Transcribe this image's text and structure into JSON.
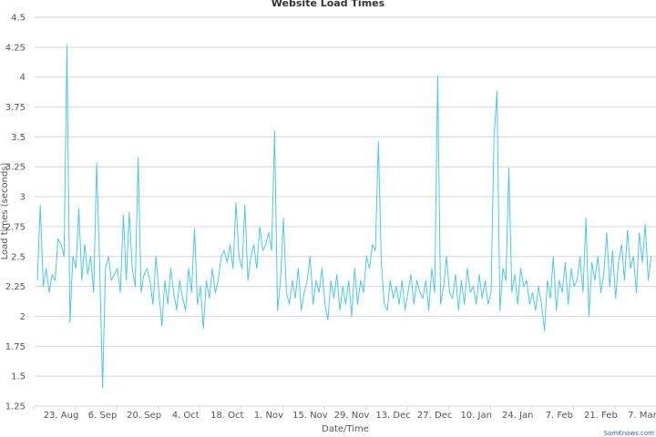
{
  "chart_data": {
    "type": "line",
    "title": "Website Load Times",
    "xlabel": "Date/Time",
    "ylabel": "Load times (seconds)",
    "ylim": [
      1.25,
      4.5
    ],
    "yticks": [
      1.25,
      1.5,
      1.75,
      2,
      2.25,
      2.5,
      2.75,
      3,
      3.25,
      3.5,
      3.75,
      4,
      4.25,
      4.5
    ],
    "ytick_labels": [
      "1.25",
      "1.5",
      "1.75",
      "2",
      "2.25",
      "2.5",
      "2.75",
      "3",
      "3.25",
      "3.5",
      "3.75",
      "4",
      "4.25",
      "4.5"
    ],
    "xticks": [
      "23 Aug",
      "6 Sep",
      "20 Sep",
      "4 Oct",
      "18 Oct",
      "1 Nov",
      "15 Nov",
      "29 Nov",
      "13 Dec",
      "27 Dec",
      "10 Jan",
      "24 Jan",
      "7 Feb",
      "21 Feb",
      "7 Mar"
    ],
    "xtick_labels": [
      "23. Aug",
      "6. Sep",
      "20. Sep",
      "4. Oct",
      "18. Oct",
      "1. Nov",
      "15. Nov",
      "29. Nov",
      "13. Dec",
      "27. Dec",
      "10. Jan",
      "24. Jan",
      "7. Feb",
      "21. Feb",
      "7. Mar"
    ],
    "grid": true,
    "legend": "none",
    "color": "#4cc8e4",
    "x": [
      "15 Aug",
      "16 Aug",
      "17 Aug",
      "18 Aug",
      "19 Aug",
      "20 Aug",
      "21 Aug",
      "22 Aug",
      "23 Aug",
      "24 Aug",
      "25 Aug",
      "26 Aug",
      "27 Aug",
      "28 Aug",
      "29 Aug",
      "30 Aug",
      "31 Aug",
      "1 Sep",
      "2 Sep",
      "3 Sep",
      "4 Sep",
      "5 Sep",
      "6 Sep",
      "7 Sep",
      "8 Sep",
      "9 Sep",
      "10 Sep",
      "11 Sep",
      "12 Sep",
      "13 Sep",
      "14 Sep",
      "15 Sep",
      "16 Sep",
      "17 Sep",
      "18 Sep",
      "19 Sep",
      "20 Sep",
      "21 Sep",
      "22 Sep",
      "23 Sep",
      "24 Sep",
      "25 Sep",
      "26 Sep",
      "27 Sep",
      "28 Sep",
      "29 Sep",
      "30 Sep",
      "1 Oct",
      "2 Oct",
      "3 Oct",
      "4 Oct",
      "5 Oct",
      "6 Oct",
      "7 Oct",
      "8 Oct",
      "9 Oct",
      "10 Oct",
      "11 Oct",
      "12 Oct",
      "13 Oct",
      "14 Oct",
      "15 Oct",
      "16 Oct",
      "17 Oct",
      "18 Oct",
      "19 Oct",
      "20 Oct",
      "21 Oct",
      "22 Oct",
      "23 Oct",
      "24 Oct",
      "25 Oct",
      "26 Oct",
      "27 Oct",
      "28 Oct",
      "29 Oct",
      "30 Oct",
      "31 Oct",
      "1 Nov",
      "2 Nov",
      "3 Nov",
      "4 Nov",
      "5 Nov",
      "6 Nov",
      "7 Nov",
      "8 Nov",
      "9 Nov",
      "10 Nov",
      "11 Nov",
      "12 Nov",
      "13 Nov",
      "14 Nov",
      "15 Nov",
      "16 Nov",
      "17 Nov",
      "18 Nov",
      "19 Nov",
      "20 Nov",
      "21 Nov",
      "22 Nov",
      "23 Nov",
      "24 Nov",
      "25 Nov",
      "26 Nov",
      "27 Nov",
      "28 Nov",
      "29 Nov",
      "30 Nov",
      "1 Dec",
      "2 Dec",
      "3 Dec",
      "4 Dec",
      "5 Dec",
      "6 Dec",
      "7 Dec",
      "8 Dec",
      "9 Dec",
      "10 Dec",
      "11 Dec",
      "12 Dec",
      "13 Dec",
      "14 Dec",
      "15 Dec",
      "16 Dec",
      "17 Dec",
      "18 Dec",
      "19 Dec",
      "20 Dec",
      "21 Dec",
      "22 Dec",
      "23 Dec",
      "24 Dec",
      "25 Dec",
      "26 Dec",
      "27 Dec",
      "28 Dec",
      "29 Dec",
      "30 Dec",
      "31 Dec",
      "1 Jan",
      "2 Jan",
      "3 Jan",
      "4 Jan",
      "5 Jan",
      "6 Jan",
      "7 Jan",
      "8 Jan",
      "9 Jan",
      "10 Jan",
      "11 Jan",
      "12 Jan",
      "13 Jan",
      "14 Jan",
      "15 Jan",
      "16 Jan",
      "17 Jan",
      "18 Jan",
      "19 Jan",
      "20 Jan",
      "21 Jan",
      "22 Jan",
      "23 Jan",
      "24 Jan",
      "25 Jan",
      "26 Jan",
      "27 Jan",
      "28 Jan",
      "29 Jan",
      "30 Jan",
      "31 Jan",
      "1 Feb",
      "2 Feb",
      "3 Feb",
      "4 Feb",
      "5 Feb",
      "6 Feb",
      "7 Feb",
      "8 Feb",
      "9 Feb",
      "10 Feb",
      "11 Feb",
      "12 Feb",
      "13 Feb",
      "14 Feb",
      "15 Feb",
      "16 Feb",
      "17 Feb",
      "18 Feb",
      "19 Feb",
      "20 Feb",
      "21 Feb",
      "22 Feb",
      "23 Feb",
      "24 Feb",
      "25 Feb",
      "26 Feb",
      "27 Feb",
      "28 Feb",
      "1 Mar",
      "2 Mar",
      "3 Mar",
      "4 Mar",
      "5 Mar",
      "6 Mar",
      "7 Mar",
      "8 Mar",
      "9 Mar",
      "10 Mar"
    ],
    "values": [
      2.3,
      2.93,
      2.25,
      2.4,
      2.2,
      2.35,
      2.3,
      2.65,
      2.6,
      2.5,
      4.27,
      1.95,
      2.5,
      2.4,
      2.9,
      2.3,
      2.6,
      2.35,
      2.5,
      2.2,
      3.28,
      2.45,
      1.4,
      2.4,
      2.5,
      2.3,
      2.35,
      2.4,
      2.2,
      2.85,
      2.3,
      2.87,
      2.4,
      2.25,
      3.33,
      2.2,
      2.35,
      2.4,
      2.3,
      2.1,
      2.5,
      2.2,
      1.92,
      2.3,
      2.1,
      2.4,
      2.2,
      2.05,
      2.3,
      2.15,
      2.05,
      2.4,
      2.2,
      2.73,
      2.1,
      2.25,
      1.9,
      2.3,
      2.15,
      2.4,
      2.2,
      2.3,
      2.5,
      2.55,
      2.45,
      2.6,
      2.4,
      2.95,
      2.5,
      2.4,
      2.93,
      2.3,
      2.5,
      2.6,
      2.4,
      2.75,
      2.55,
      2.6,
      2.7,
      2.55,
      3.55,
      2.05,
      2.3,
      2.82,
      2.2,
      2.1,
      2.3,
      2.15,
      2.4,
      2.05,
      2.2,
      2.3,
      2.5,
      2.1,
      2.3,
      2.2,
      2.4,
      2.1,
      1.97,
      2.3,
      2.15,
      2.35,
      2.05,
      2.25,
      2.1,
      2.3,
      2.0,
      2.4,
      2.1,
      2.3,
      2.2,
      2.5,
      2.4,
      2.6,
      2.55,
      3.46,
      2.45,
      2.1,
      2.05,
      2.3,
      2.15,
      2.25,
      2.1,
      2.3,
      2.05,
      2.2,
      2.35,
      2.1,
      2.3,
      2.2,
      2.15,
      2.3,
      2.05,
      2.4,
      2.2,
      4.01,
      2.1,
      2.25,
      2.5,
      2.2,
      2.15,
      2.35,
      2.05,
      2.3,
      2.1,
      2.4,
      2.2,
      2.25,
      2.1,
      2.35,
      2.15,
      2.3,
      2.1,
      2.2,
      3.49,
      3.88,
      2.05,
      2.4,
      2.3,
      3.24,
      2.2,
      2.35,
      2.1,
      2.4,
      2.25,
      2.3,
      2.1,
      2.2,
      2.05,
      2.25,
      2.1,
      1.88,
      2.3,
      2.15,
      2.5,
      2.05,
      2.3,
      2.2,
      2.45,
      2.1,
      2.4,
      2.25,
      2.3,
      2.5,
      2.2,
      2.82,
      2.0,
      2.45,
      2.3,
      2.5,
      2.2,
      2.35,
      2.7,
      2.25,
      2.55,
      2.15,
      2.45,
      2.6,
      2.3,
      2.72,
      2.4,
      2.5,
      2.2,
      2.7,
      2.45,
      2.77,
      2.3,
      2.5
    ]
  },
  "credit": "SamKnows.com"
}
